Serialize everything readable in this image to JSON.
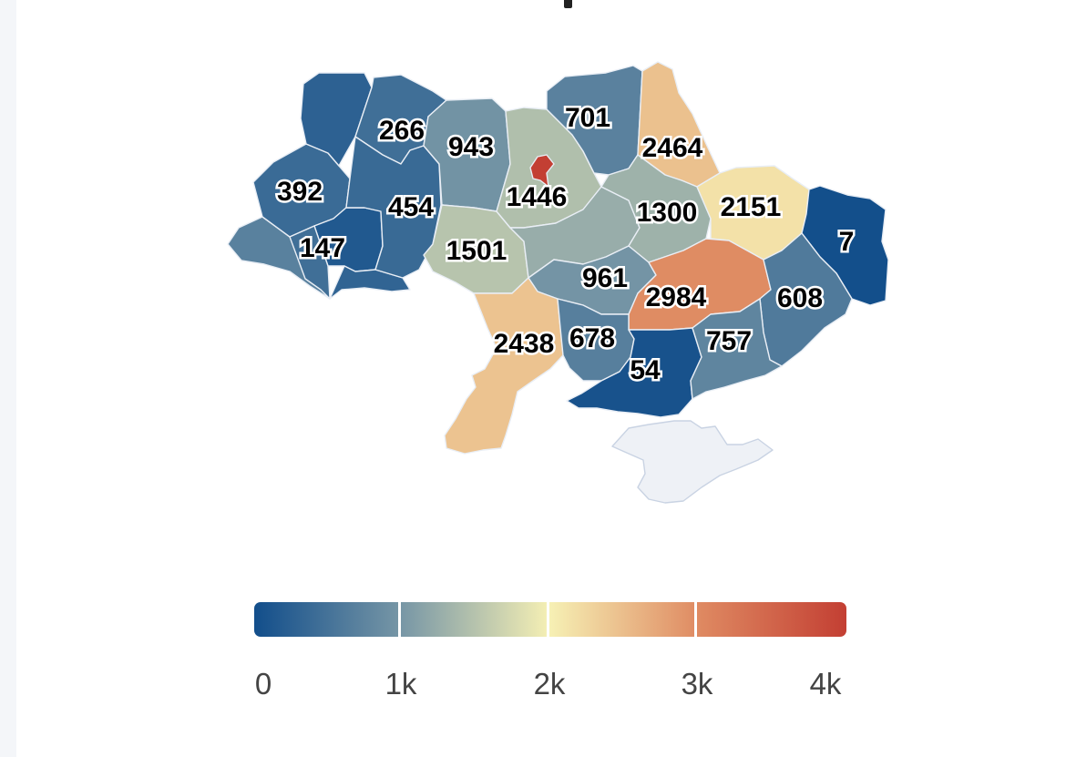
{
  "regions": [
    {
      "id": "volyn",
      "value": 266
    },
    {
      "id": "rivne",
      "value": 454
    },
    {
      "id": "lviv",
      "value": 392
    },
    {
      "id": "ternopil",
      "value": 147
    },
    {
      "id": "zhytomyr",
      "value": 943
    },
    {
      "id": "kyiv-oblast",
      "value": 1446
    },
    {
      "id": "chernihiv",
      "value": 701
    },
    {
      "id": "sumy",
      "value": 2464
    },
    {
      "id": "vinnytsia",
      "value": 1501
    },
    {
      "id": "poltava",
      "value": 1300
    },
    {
      "id": "kharkiv",
      "value": 2151
    },
    {
      "id": "luhansk",
      "value": 7
    },
    {
      "id": "kirovohrad",
      "value": 961
    },
    {
      "id": "dnipropetrovsk",
      "value": 2984
    },
    {
      "id": "donetsk",
      "value": 608
    },
    {
      "id": "odesa",
      "value": 2438
    },
    {
      "id": "mykolaiv",
      "value": 678
    },
    {
      "id": "zaporizhzhia",
      "value": 757
    },
    {
      "id": "kherson",
      "value": 54
    }
  ],
  "unlabeled_regions": [
    {
      "id": "zakarpattia",
      "value": 700
    },
    {
      "id": "ivano-frankivsk",
      "value": 450
    },
    {
      "id": "chernivtsi",
      "value": 300
    },
    {
      "id": "khmelnytskyi",
      "value": 380
    },
    {
      "id": "cherkasy",
      "value": 1250
    },
    {
      "id": "kyiv-city",
      "value": 4000
    }
  ],
  "no_data_regions": [
    "crimea"
  ],
  "colors": {
    "scale": [
      "#124e8b",
      "#7897a6",
      "#f6f0b4",
      "#df8a62",
      "#c33f33"
    ],
    "no_data": "#eef1f6",
    "region_border": "#e9eef5"
  },
  "legend": {
    "min": 0,
    "max": 4000,
    "ticks": [
      "0",
      "1k",
      "2k",
      "3k",
      "4k"
    ]
  }
}
